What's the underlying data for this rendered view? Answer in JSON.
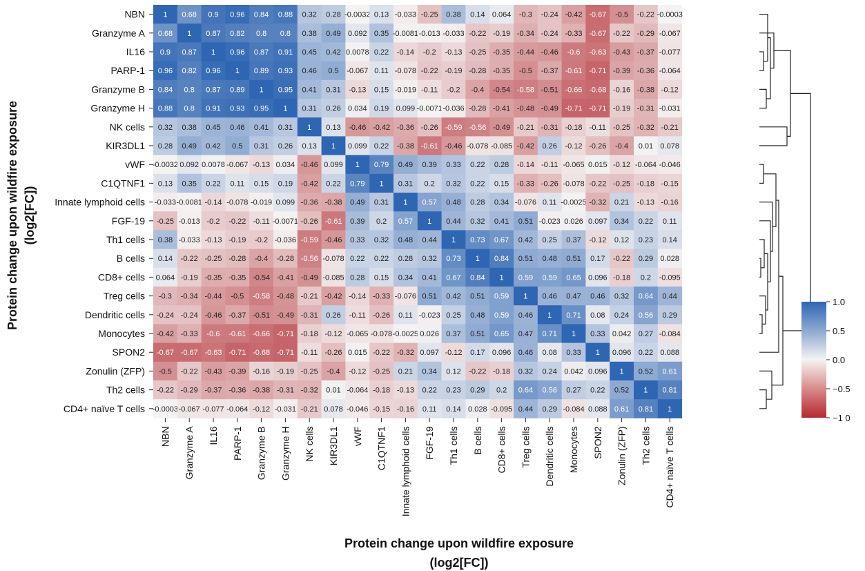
{
  "chart_data": {
    "type": "heatmap",
    "xlabel": [
      "Protein change upon wildfire exposure",
      "(log2[FC])"
    ],
    "ylabel": [
      "Protein change upon wildfire exposure",
      "(log2[FC])"
    ],
    "labels": [
      "NBN",
      "Granzyme A",
      "IL16",
      "PARP-1",
      "Granzyme B",
      "Granzyme H",
      "NK cells",
      "KIR3DL1",
      "vWF",
      "C1QTNF1",
      "Innate lymphoid cells",
      "FGF-19",
      "Th1 cells",
      "B cells",
      "CD8+ cells",
      "Treg cells",
      "Dendritic cells",
      "Monocytes",
      "SPON2",
      "Zonulin (ZFP)",
      "Th2 cells",
      "CD4+ naïve T cells"
    ],
    "values": [
      [
        "1",
        "0.68",
        "0.9",
        "0.96",
        "0.84",
        "0.88",
        "0.32",
        "0.28",
        "-0.0032",
        "0.13",
        "-0.033",
        "-0.25",
        "0.38",
        "0.14",
        "0.064",
        "-0.3",
        "-0.24",
        "-0.42",
        "-0.67",
        "-0.5",
        "-0.22",
        "-0.0003"
      ],
      [
        "0.68",
        "1",
        "0.87",
        "0.82",
        "0.8",
        "0.8",
        "0.38",
        "0.49",
        "0.092",
        "0.35",
        "-0.0081",
        "-0.013",
        "-0.033",
        "-0.22",
        "-0.19",
        "-0.34",
        "-0.24",
        "-0.33",
        "-0.67",
        "-0.22",
        "-0.29",
        "-0.067"
      ],
      [
        "0.9",
        "0.87",
        "1",
        "0.96",
        "0.87",
        "0.91",
        "0.45",
        "0.42",
        "0.0078",
        "0.22",
        "-0.14",
        "-0.2",
        "-0.13",
        "-0.25",
        "-0.35",
        "-0.44",
        "-0.46",
        "-0.6",
        "-0.63",
        "-0.43",
        "-0.37",
        "-0.077"
      ],
      [
        "0.96",
        "0.82",
        "0.96",
        "1",
        "0.89",
        "0.93",
        "0.46",
        "0.5",
        "-0.067",
        "0.11",
        "-0.078",
        "-0.22",
        "-0.19",
        "-0.28",
        "-0.35",
        "-0.5",
        "-0.37",
        "-0.61",
        "-0.71",
        "-0.39",
        "-0.36",
        "-0.064"
      ],
      [
        "0.84",
        "0.8",
        "0.87",
        "0.89",
        "1",
        "0.95",
        "0.41",
        "0.31",
        "-0.13",
        "0.15",
        "-0.019",
        "-0.11",
        "-0.2",
        "-0.4",
        "-0.54",
        "-0.58",
        "-0.51",
        "-0.66",
        "-0.68",
        "-0.16",
        "-0.38",
        "-0.12"
      ],
      [
        "0.88",
        "0.8",
        "0.91",
        "0.93",
        "0.95",
        "1",
        "0.31",
        "0.26",
        "0.034",
        "0.19",
        "0.099",
        "-0.0071",
        "-0.036",
        "-0.28",
        "-0.41",
        "-0.48",
        "-0.49",
        "-0.71",
        "-0.71",
        "-0.19",
        "-0.31",
        "-0.031"
      ],
      [
        "0.32",
        "0.38",
        "0.45",
        "0.46",
        "0.41",
        "0.31",
        "1",
        "0.13",
        "-0.46",
        "-0.42",
        "-0.36",
        "-0.26",
        "-0.59",
        "-0.56",
        "-0.49",
        "-0.21",
        "-0.31",
        "-0.18",
        "-0.11",
        "-0.25",
        "-0.32",
        "-0.21"
      ],
      [
        "0.28",
        "0.49",
        "0.42",
        "0.5",
        "0.31",
        "0.26",
        "0.13",
        "1",
        "0.099",
        "0.22",
        "-0.38",
        "-0.61",
        "-0.46",
        "-0.078",
        "-0.085",
        "-0.42",
        "0.26",
        "-0.12",
        "-0.26",
        "-0.4",
        "0.01",
        "0.078"
      ],
      [
        "-0.0032",
        "0.092",
        "0.0078",
        "-0.067",
        "-0.13",
        "0.034",
        "-0.46",
        "0.099",
        "1",
        "0.79",
        "0.49",
        "0.39",
        "0.33",
        "0.22",
        "0.28",
        "-0.14",
        "-0.11",
        "-0.065",
        "0.015",
        "-0.12",
        "-0.064",
        "-0.046"
      ],
      [
        "0.13",
        "0.35",
        "0.22",
        "0.11",
        "0.15",
        "0.19",
        "-0.42",
        "0.22",
        "0.79",
        "1",
        "0.31",
        "0.2",
        "0.32",
        "0.22",
        "0.15",
        "-0.33",
        "-0.26",
        "-0.078",
        "-0.22",
        "-0.25",
        "-0.18",
        "-0.15"
      ],
      [
        "-0.033",
        "-0.0081",
        "-0.14",
        "-0.078",
        "-0.019",
        "0.099",
        "-0.36",
        "-0.38",
        "0.49",
        "0.31",
        "1",
        "0.57",
        "0.48",
        "0.28",
        "0.34",
        "-0.076",
        "0.11",
        "-0.0025",
        "-0.32",
        "0.21",
        "-0.13",
        "-0.16"
      ],
      [
        "-0.25",
        "-0.013",
        "-0.2",
        "-0.22",
        "-0.11",
        "-0.0071",
        "-0.26",
        "-0.61",
        "0.39",
        "0.2",
        "0.57",
        "1",
        "0.44",
        "0.32",
        "0.41",
        "0.51",
        "-0.023",
        "0.026",
        "0.097",
        "0.34",
        "0.22",
        "0.11"
      ],
      [
        "0.38",
        "-0.033",
        "-0.13",
        "-0.19",
        "-0.2",
        "-0.036",
        "-0.59",
        "-0.46",
        "0.33",
        "0.32",
        "0.48",
        "0.44",
        "1",
        "0.73",
        "0.67",
        "0.42",
        "0.25",
        "0.37",
        "-0.12",
        "0.12",
        "0.23",
        "0.14"
      ],
      [
        "0.14",
        "-0.22",
        "-0.25",
        "-0.28",
        "-0.4",
        "-0.28",
        "-0.56",
        "-0.078",
        "0.22",
        "0.22",
        "0.28",
        "0.32",
        "0.73",
        "1",
        "0.84",
        "0.51",
        "0.48",
        "0.51",
        "0.17",
        "-0.22",
        "0.29",
        "0.028"
      ],
      [
        "0.064",
        "-0.19",
        "-0.35",
        "-0.35",
        "-0.54",
        "-0.41",
        "-0.49",
        "-0.085",
        "0.28",
        "0.15",
        "0.34",
        "0.41",
        "0.67",
        "0.84",
        "1",
        "0.59",
        "0.59",
        "0.65",
        "0.096",
        "-0.18",
        "0.2",
        "-0.095"
      ],
      [
        "-0.3",
        "-0.34",
        "-0.44",
        "-0.5",
        "-0.58",
        "-0.48",
        "-0.21",
        "-0.42",
        "-0.14",
        "-0.33",
        "-0.076",
        "0.51",
        "0.42",
        "0.51",
        "0.59",
        "1",
        "0.46",
        "0.47",
        "0.46",
        "0.32",
        "0.64",
        "0.44"
      ],
      [
        "-0.24",
        "-0.24",
        "-0.46",
        "-0.37",
        "-0.51",
        "-0.49",
        "-0.31",
        "0.26",
        "-0.11",
        "-0.26",
        "0.11",
        "-0.023",
        "0.25",
        "0.48",
        "0.59",
        "0.46",
        "1",
        "0.71",
        "0.08",
        "0.24",
        "0.56",
        "0.29"
      ],
      [
        "-0.42",
        "-0.33",
        "-0.6",
        "-0.61",
        "-0.66",
        "-0.71",
        "-0.18",
        "-0.12",
        "-0.065",
        "-0.078",
        "-0.0025",
        "0.026",
        "0.37",
        "0.51",
        "0.65",
        "0.47",
        "0.71",
        "1",
        "0.33",
        "0.042",
        "0.27",
        "-0.084"
      ],
      [
        "-0.67",
        "-0.67",
        "-0.63",
        "-0.71",
        "-0.68",
        "-0.71",
        "-0.11",
        "-0.26",
        "0.015",
        "-0.22",
        "-0.32",
        "0.097",
        "-0.12",
        "0.17",
        "0.096",
        "0.46",
        "0.08",
        "0.33",
        "1",
        "0.096",
        "0.22",
        "0.088"
      ],
      [
        "-0.5",
        "-0.22",
        "-0.43",
        "-0.39",
        "-0.16",
        "-0.19",
        "-0.25",
        "-0.4",
        "-0.12",
        "-0.25",
        "0.21",
        "0.34",
        "0.12",
        "-0.22",
        "-0.18",
        "0.32",
        "0.24",
        "0.042",
        "0.096",
        "1",
        "0.52",
        "0.61"
      ],
      [
        "-0.22",
        "-0.29",
        "-0.37",
        "-0.36",
        "-0.38",
        "-0.31",
        "-0.32",
        "0.01",
        "-0.064",
        "-0.18",
        "-0.13",
        "0.22",
        "0.23",
        "0.29",
        "0.2",
        "0.64",
        "0.56",
        "0.27",
        "0.22",
        "0.52",
        "1",
        "0.81"
      ],
      [
        "-0.0003",
        "-0.067",
        "-0.077",
        "-0.064",
        "-0.12",
        "-0.031",
        "-0.21",
        "0.078",
        "-0.046",
        "-0.15",
        "-0.16",
        "0.11",
        "0.14",
        "0.028",
        "-0.095",
        "0.44",
        "0.29",
        "-0.084",
        "0.088",
        "0.61",
        "0.81",
        "1"
      ]
    ],
    "colorbar": {
      "ticks": [
        "1.0",
        "0.5",
        "0.0",
        "−0.5",
        "−1 0"
      ],
      "tick_values": [
        1,
        0.5,
        0,
        -0.5,
        -1
      ],
      "range": [
        -1,
        1
      ],
      "colors": {
        "high": "#2f66b3",
        "mid": "#f5f3f3",
        "low": "#b22a30"
      }
    },
    "dendrogram": true
  }
}
